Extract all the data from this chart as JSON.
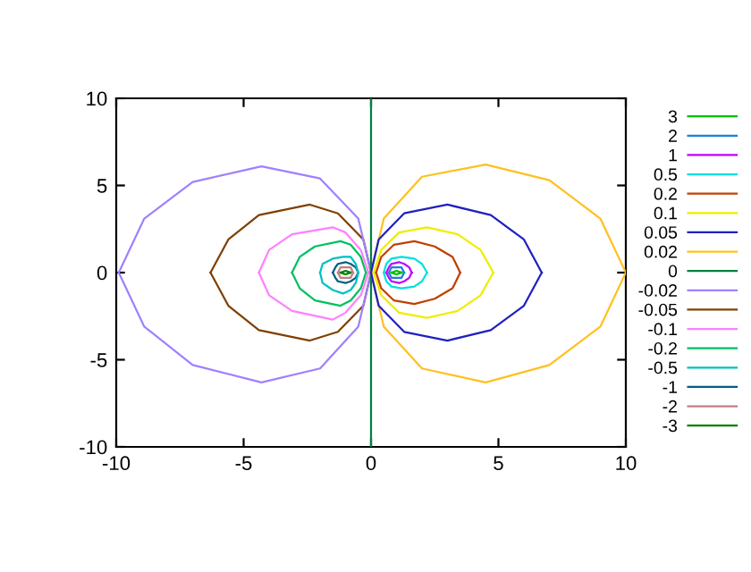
{
  "chart_data": {
    "type": "line",
    "xlim": [
      -10,
      10
    ],
    "ylim": [
      -10,
      10
    ],
    "xticks": [
      -10,
      -5,
      0,
      5,
      10
    ],
    "yticks": [
      -10,
      -5,
      0,
      5,
      10
    ],
    "grid": false,
    "legend": "right",
    "marker": "none",
    "line_style": "solid",
    "series": [
      {
        "name": "3",
        "color": "#00c000",
        "x": [
          0.8,
          1,
          1.2
        ],
        "values": [
          0,
          0.1,
          0
        ]
      },
      {
        "color": "#00c000",
        "x": [
          0.8,
          1,
          1.2
        ],
        "values": [
          0,
          -0.1,
          0
        ]
      },
      {
        "name": "2",
        "color": "#1e7fe0",
        "x": [
          0.7,
          0.8,
          1.2,
          1.3
        ],
        "values": [
          0,
          0.3,
          0.3,
          0
        ]
      },
      {
        "color": "#1e7fe0",
        "x": [
          0.7,
          0.8,
          1.2,
          1.3
        ],
        "values": [
          0,
          -0.3,
          -0.3,
          0
        ]
      },
      {
        "name": "1",
        "color": "#c000ff",
        "x": [
          0.6,
          0.7,
          0.8,
          1.1,
          1.3,
          1.5,
          1.6
        ],
        "values": [
          0,
          0.3,
          0.5,
          0.6,
          0.5,
          0.3,
          0
        ]
      },
      {
        "color": "#c000ff",
        "x": [
          0.6,
          0.7,
          0.8,
          1.1,
          1.3,
          1.5,
          1.6
        ],
        "values": [
          0,
          -0.3,
          -0.5,
          -0.6,
          -0.5,
          -0.3,
          0
        ]
      },
      {
        "name": "0.5",
        "color": "#00e0e0",
        "x": [
          0.5,
          0.6,
          0.8,
          1.2,
          1.7,
          2,
          2.2
        ],
        "values": [
          0,
          0.5,
          0.8,
          0.9,
          0.8,
          0.5,
          0
        ]
      },
      {
        "color": "#00e0e0",
        "x": [
          0.5,
          0.6,
          0.8,
          1.2,
          1.7,
          2,
          2.2
        ],
        "values": [
          0,
          -0.5,
          -0.8,
          -0.9,
          -0.8,
          -0.5,
          0
        ]
      },
      {
        "name": "0.2",
        "color": "#c04000",
        "x": [
          0.2,
          0.4,
          0.9,
          1.7,
          2.5,
          3.2,
          3.5
        ],
        "values": [
          0,
          0.9,
          1.6,
          1.8,
          1.5,
          0.9,
          0
        ]
      },
      {
        "color": "#c04000",
        "x": [
          0.2,
          0.4,
          0.9,
          1.7,
          2.5,
          3.2,
          3.5
        ],
        "values": [
          0,
          -0.9,
          -1.6,
          -1.8,
          -1.5,
          -0.9,
          0
        ]
      },
      {
        "name": "0.1",
        "color": "#eeee00",
        "x": [
          0.1,
          0.4,
          1.1,
          2.2,
          3.4,
          4.3,
          4.8
        ],
        "values": [
          0,
          1.3,
          2.3,
          2.6,
          2.2,
          1.3,
          0
        ]
      },
      {
        "color": "#eeee00",
        "x": [
          0.1,
          0.4,
          1.1,
          2.2,
          3.4,
          4.3,
          4.8
        ],
        "values": [
          0,
          -1.3,
          -2.3,
          -2.6,
          -2.2,
          -1.3,
          0
        ]
      },
      {
        "name": "0.05",
        "color": "#2020c0",
        "x": [
          0,
          0.3,
          1.3,
          3,
          4.7,
          6,
          6.7
        ],
        "values": [
          0,
          1.9,
          3.4,
          3.9,
          3.3,
          1.9,
          0
        ]
      },
      {
        "color": "#2020c0",
        "x": [
          0,
          0.3,
          1.3,
          3,
          4.7,
          6,
          6.7
        ],
        "values": [
          0,
          -1.9,
          -3.4,
          -3.9,
          -3.3,
          -1.9,
          0
        ]
      },
      {
        "name": "0.02",
        "color": "#ffc020",
        "x": [
          0,
          0.5,
          2,
          4.5,
          7,
          9,
          10
        ],
        "values": [
          0,
          3.1,
          5.5,
          6.2,
          5.3,
          3.1,
          0
        ]
      },
      {
        "color": "#ffc020",
        "x": [
          0,
          0.5,
          2,
          4.5,
          7,
          9,
          10
        ],
        "values": [
          0,
          -3.1,
          -5.5,
          -6.3,
          -5.3,
          -3.1,
          0
        ]
      },
      {
        "name": "0",
        "color": "#008040",
        "x": [
          0,
          0
        ],
        "values": [
          -10,
          10
        ]
      },
      {
        "name": "-0.02",
        "color": "#a080ff",
        "x": [
          -9.9,
          -8.9,
          -7,
          -4.3,
          -2,
          -0.5,
          0
        ],
        "values": [
          0,
          3.1,
          5.2,
          6.1,
          5.4,
          3.1,
          0
        ]
      },
      {
        "color": "#a080ff",
        "x": [
          -9.9,
          -8.9,
          -7,
          -4.3,
          -2,
          -0.5,
          0
        ],
        "values": [
          0,
          -3.1,
          -5.3,
          -6.3,
          -5.5,
          -3.1,
          0
        ]
      },
      {
        "name": "-0.05",
        "color": "#804000",
        "x": [
          -6.3,
          -5.6,
          -4.4,
          -2.4,
          -1.3,
          -0.3,
          0
        ],
        "values": [
          0,
          1.9,
          3.3,
          3.9,
          3.4,
          1.9,
          0
        ]
      },
      {
        "color": "#804000",
        "x": [
          -6.3,
          -5.6,
          -4.4,
          -2.4,
          -1.3,
          -0.3,
          0
        ],
        "values": [
          0,
          -1.9,
          -3.3,
          -3.9,
          -3.4,
          -1.9,
          0
        ]
      },
      {
        "name": "-0.1",
        "color": "#ff80ff",
        "x": [
          -4.4,
          -4,
          -3.1,
          -1.5,
          -1,
          -0.4,
          -0.1
        ],
        "values": [
          0,
          1.3,
          2.2,
          2.6,
          2.3,
          1.3,
          0
        ]
      },
      {
        "color": "#ff80ff",
        "x": [
          -4.4,
          -4,
          -3.1,
          -1.5,
          -1,
          -0.4,
          -0.1
        ],
        "values": [
          0,
          -1.3,
          -2.2,
          -2.7,
          -2.3,
          -1.3,
          0
        ]
      },
      {
        "name": "-0.2",
        "color": "#00c060",
        "x": [
          -3.1,
          -2.8,
          -2.2,
          -1.2,
          -0.8,
          -0.4,
          -0.2
        ],
        "values": [
          0,
          0.9,
          1.5,
          1.8,
          1.6,
          0.9,
          0
        ]
      },
      {
        "color": "#00c060",
        "x": [
          -3.1,
          -2.8,
          -2.2,
          -1.2,
          -0.8,
          -0.4,
          -0.2
        ],
        "values": [
          0,
          -0.9,
          -1.6,
          -1.9,
          -1.6,
          -0.9,
          0
        ]
      },
      {
        "name": "-0.5",
        "color": "#00c0c0",
        "x": [
          -2,
          -1.9,
          -1.5,
          -1.1,
          -0.8,
          -0.6,
          -0.5
        ],
        "values": [
          0,
          0.5,
          0.8,
          0.9,
          0.9,
          0.5,
          0
        ]
      },
      {
        "color": "#00c0c0",
        "x": [
          -2,
          -1.9,
          -1.5,
          -1.1,
          -0.8,
          -0.6,
          -0.5
        ],
        "values": [
          0,
          -0.6,
          -1,
          -1.2,
          -1,
          -0.6,
          0
        ]
      },
      {
        "name": "-1",
        "color": "#006080",
        "x": [
          -1.5,
          -1.4,
          -1.3,
          -1,
          -0.8,
          -0.6,
          -0.5
        ],
        "values": [
          0,
          0.3,
          0.5,
          0.6,
          0.5,
          0.3,
          0
        ]
      },
      {
        "color": "#006080",
        "x": [
          -1.5,
          -1.4,
          -1.3,
          -1,
          -0.8,
          -0.6,
          -0.5
        ],
        "values": [
          0,
          -0.3,
          -0.5,
          -0.6,
          -0.5,
          -0.3,
          0
        ]
      },
      {
        "name": "-2",
        "color": "#c08080",
        "x": [
          -1.3,
          -1.2,
          -0.8,
          -0.7
        ],
        "values": [
          0,
          0.3,
          0.3,
          0
        ]
      },
      {
        "color": "#c08080",
        "x": [
          -1.3,
          -1.2,
          -0.8,
          -0.7
        ],
        "values": [
          0,
          -0.3,
          -0.3,
          0
        ]
      },
      {
        "name": "-3",
        "color": "#008000",
        "x": [
          -1.2,
          -1,
          -0.8
        ],
        "values": [
          0,
          0.1,
          0
        ]
      },
      {
        "color": "#008000",
        "x": [
          -1.2,
          -1,
          -0.8
        ],
        "values": [
          0,
          -0.1,
          0
        ]
      }
    ]
  }
}
